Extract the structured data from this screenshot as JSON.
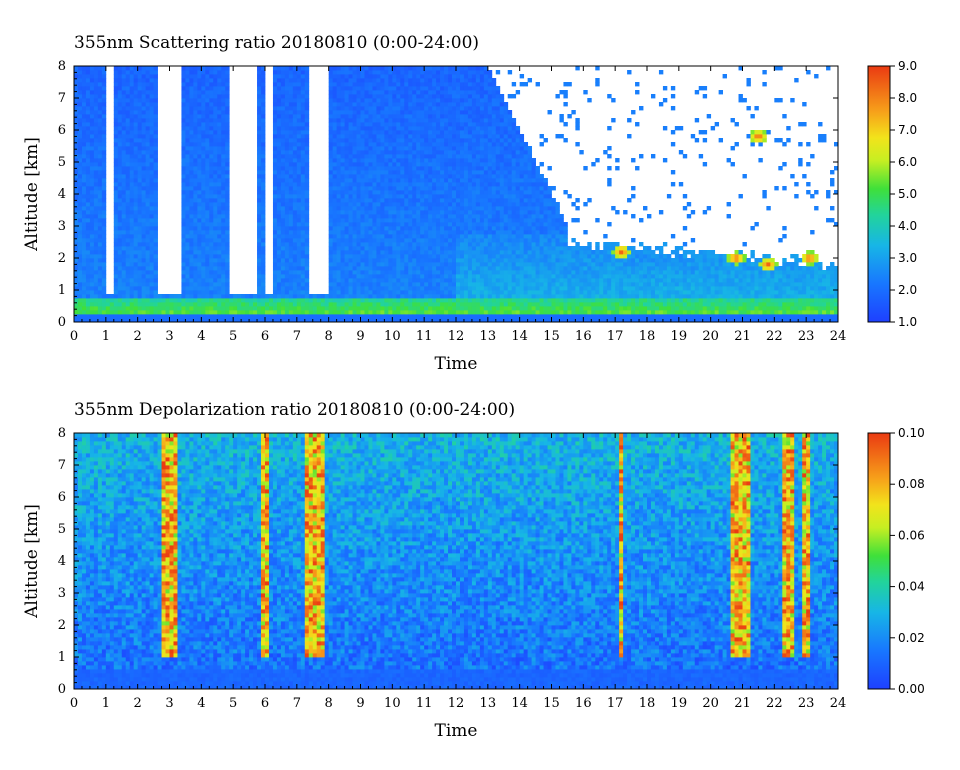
{
  "chart_data": [
    {
      "type": "heatmap",
      "title": "355nm Scattering ratio  20180810 (0:00-24:00)",
      "xlabel": "Time",
      "ylabel": "Altitude [km]",
      "xlim": [
        0,
        24
      ],
      "ylim": [
        0,
        8
      ],
      "x_ticks": [
        "0",
        "1",
        "2",
        "3",
        "4",
        "5",
        "6",
        "7",
        "8",
        "9",
        "10",
        "11",
        "12",
        "13",
        "14",
        "15",
        "16",
        "17",
        "18",
        "19",
        "20",
        "21",
        "22",
        "23",
        "24"
      ],
      "y_ticks": [
        "0",
        "1",
        "2",
        "3",
        "4",
        "5",
        "6",
        "7",
        "8"
      ],
      "colorbar": {
        "min": 1.0,
        "max": 9.0,
        "ticks": [
          "1.0",
          "2.0",
          "3.0",
          "4.0",
          "5.0",
          "6.0",
          "7.0",
          "8.0",
          "9.0"
        ]
      },
      "features": {
        "cloud_free_gaps_hours": [
          [
            1.05,
            1.25
          ],
          [
            2.65,
            3.4
          ],
          [
            4.9,
            5.7
          ],
          [
            5.95,
            6.25
          ],
          [
            7.4,
            8.0
          ]
        ],
        "clear_upper_region_after_hour": 15.5,
        "boundary_layer_top_km": 0.8,
        "cloud_patches": [
          {
            "time": 21.5,
            "altitude_km": 5.8
          },
          {
            "time": 17.2,
            "altitude_km": 2.2
          },
          {
            "time": 20.8,
            "altitude_km": 2.0
          },
          {
            "time": 21.8,
            "altitude_km": 1.8
          },
          {
            "time": 23.1,
            "altitude_km": 2.0
          }
        ]
      }
    },
    {
      "type": "heatmap",
      "title": "355nm Depolarization ratio  20180810 (0:00-24:00)",
      "xlabel": "Time",
      "ylabel": "Altitude [km]",
      "xlim": [
        0,
        24
      ],
      "ylim": [
        0,
        8
      ],
      "x_ticks": [
        "0",
        "1",
        "2",
        "3",
        "4",
        "5",
        "6",
        "7",
        "8",
        "9",
        "10",
        "11",
        "12",
        "13",
        "14",
        "15",
        "16",
        "17",
        "18",
        "19",
        "20",
        "21",
        "22",
        "23",
        "24"
      ],
      "y_ticks": [
        "0",
        "1",
        "2",
        "3",
        "4",
        "5",
        "6",
        "7",
        "8"
      ],
      "colorbar": {
        "min": 0.0,
        "max": 0.1,
        "ticks": [
          "0.00",
          "0.02",
          "0.04",
          "0.06",
          "0.08",
          "0.10"
        ]
      },
      "features": {
        "high_depol_columns_hours": [
          [
            2.7,
            3.2
          ],
          [
            5.9,
            6.1
          ],
          [
            7.3,
            7.9
          ],
          [
            17.1,
            17.3
          ],
          [
            20.6,
            21.2
          ],
          [
            22.2,
            22.6
          ],
          [
            22.9,
            23.1
          ]
        ]
      }
    }
  ]
}
